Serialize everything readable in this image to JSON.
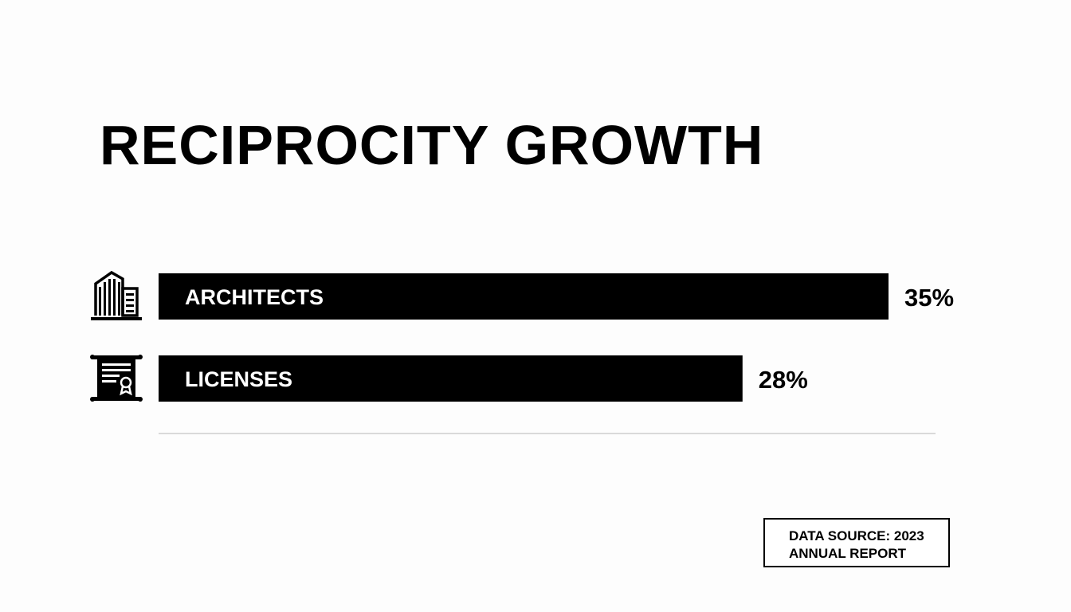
{
  "chart_data": {
    "type": "bar",
    "orientation": "horizontal",
    "title": "RECIPROCITY GROWTH",
    "categories": [
      "ARCHITECTS",
      "LICENSES"
    ],
    "values": [
      35,
      28
    ],
    "value_labels": [
      "35%",
      "28%"
    ],
    "unit": "%",
    "xlim": [
      0,
      35
    ],
    "grid": false,
    "legend": "none",
    "icons": [
      "building-icon",
      "certificate-icon"
    ],
    "bar_color": "#000000",
    "bar_text_color": "#ffffff"
  },
  "source": {
    "line1": "DATA SOURCE: 2023",
    "line2": "ANNUAL REPORT"
  }
}
